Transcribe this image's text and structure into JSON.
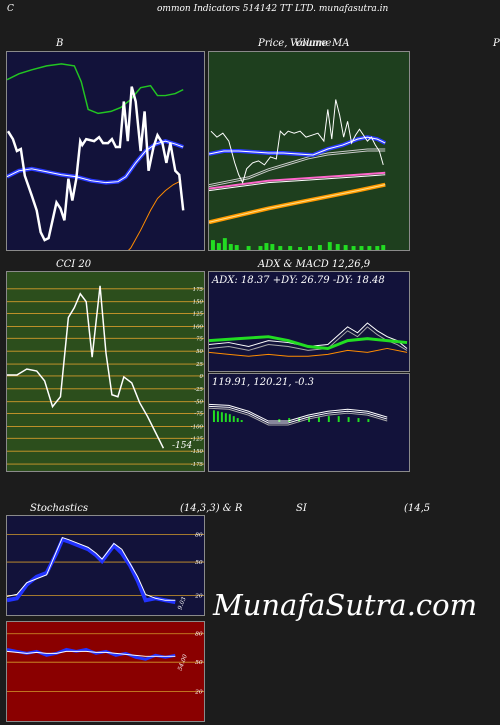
{
  "header": {
    "left": "C",
    "title": "ommon  Indicators 514142  TT LTD.  munafasutra.in"
  },
  "top_left_panel": {
    "title": "B",
    "colors": {
      "bg": "#12123a",
      "upper": "#22c522",
      "lower": "#ff8c00",
      "price": "#ffffff",
      "mid": "#2b3cff"
    }
  },
  "top_right_panel": {
    "title_left": "Price,",
    "title_overlap": "Volume",
    "title_right": "MA",
    "corner": "P",
    "colors": {
      "bg": "#1e3f1e",
      "volume": "#22dd22"
    }
  },
  "cci_panel": {
    "title": "CCI 20",
    "value_label": "-154",
    "ticks": [
      "175",
      "150",
      "125",
      "100",
      "75",
      "50",
      "25",
      "0",
      "-25",
      "-50",
      "-75",
      "-100",
      "-125",
      "-150",
      "-175"
    ],
    "colors": {
      "bg": "#2c4e1c",
      "grid": "#d29a2b"
    }
  },
  "adx_panel": {
    "title": "ADX  & MACD 12,26,9",
    "adx_readout": "ADX: 18.37  +DY: 26.79  -DY: 18.48",
    "macd_readout": "119.91,  120.21,  -0.3",
    "colors": {
      "bg": "#12123a",
      "adx": "#22dd22",
      "dy": "#ff8c00",
      "hist": "#22dd22"
    }
  },
  "stoch_panel": {
    "title_left": "Stochastics",
    "title_mid": "(14,3,3) & R",
    "title_rsi": "SI",
    "title_right": "(14,5",
    "ticks": [
      "80",
      "50",
      "20"
    ],
    "end_label": "9.03",
    "colors": {
      "bg": "#12123a",
      "grid": "#d29a2b",
      "line": "#2233ff"
    }
  },
  "rsi_panel": {
    "ticks": [
      "80",
      "50",
      "20"
    ],
    "end_label": "54.00",
    "colors": {
      "bg": "#8a0000",
      "grid": "#d29a2b",
      "line": "#2233ff"
    }
  },
  "watermark": "MunafaSutra.com"
}
